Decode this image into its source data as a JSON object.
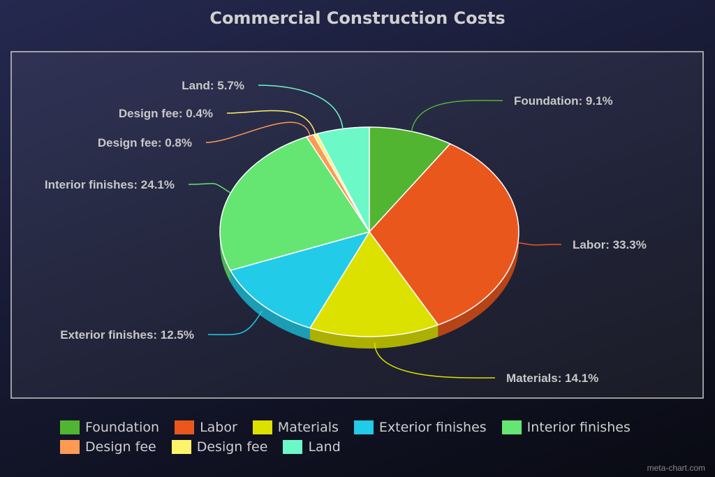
{
  "chart_data": {
    "type": "pie",
    "title": "Commercial Construction Costs",
    "slices": [
      {
        "name": "Foundation",
        "value": 9.1,
        "label": "Foundation: 9.1%",
        "color": "#52b532"
      },
      {
        "name": "Labor",
        "value": 33.3,
        "label": "Labor: 33.3%",
        "color": "#ea571d"
      },
      {
        "name": "Materials",
        "value": 14.1,
        "label": "Materials: 14.1%",
        "color": "#dde100"
      },
      {
        "name": "Exterior finishes",
        "value": 12.5,
        "label": "Exterior finishes: 12.5%",
        "color": "#22cbe8"
      },
      {
        "name": "Interior finishes",
        "value": 24.1,
        "label": "Interior finishes: 24.1%",
        "color": "#65e673"
      },
      {
        "name": "Design fee",
        "value": 0.8,
        "label": "Design fee: 0.8%",
        "color": "#ff9a55"
      },
      {
        "name": "Design fee",
        "value": 0.4,
        "label": "Design fee: 0.4%",
        "color": "#fff36a"
      },
      {
        "name": "Land",
        "value": 5.7,
        "label": "Land: 5.7%",
        "color": "#6cf9c7"
      }
    ],
    "legend_position": "bottom",
    "style": "3d"
  },
  "watermark": "meta-chart.com"
}
